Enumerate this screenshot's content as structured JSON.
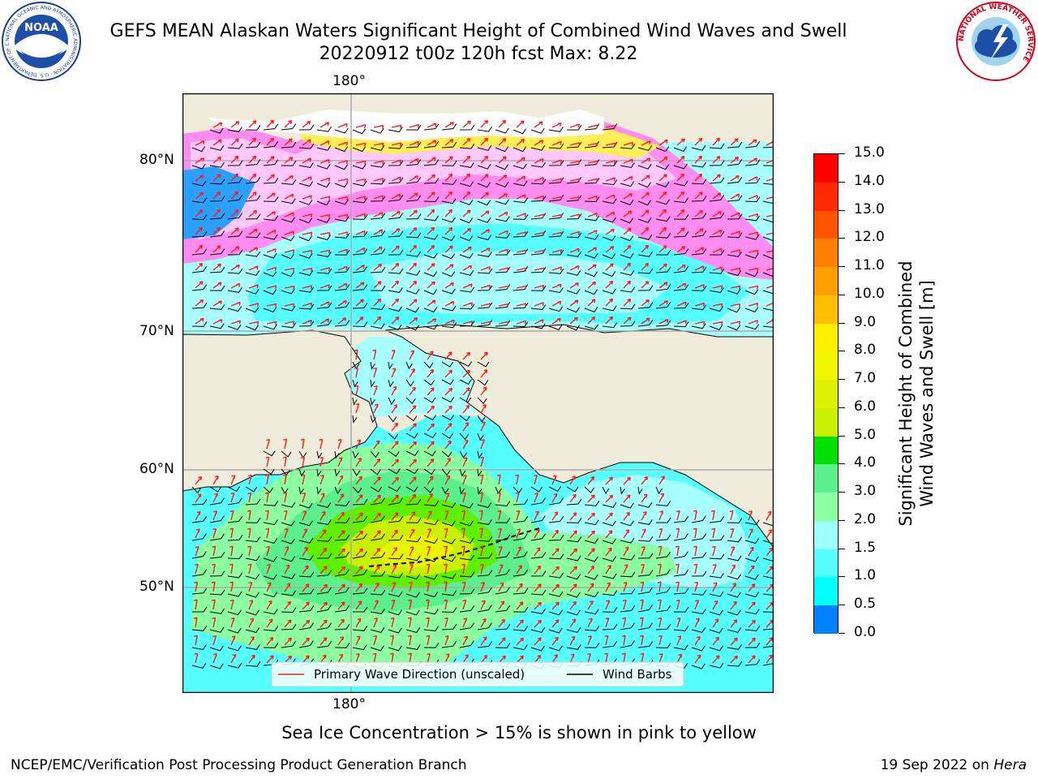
{
  "header": {
    "title_line1": "GEFS MEAN Alaskan Waters Significant Height of Combined Wind Waves and Swell",
    "title_line2": "20220912 t00z 120h fcst   Max: 8.22"
  },
  "logos": {
    "noaa_text": "NOAA",
    "noaa_ring_text": "NATIONAL OCEANIC AND ATMOSPHERIC ADMINISTRATION · U.S. DEPARTMENT OF COMMERCE",
    "nws_ring_text": "NATIONAL WEATHER SERVICE"
  },
  "map": {
    "lon_label_top": "180°",
    "lon_label_bottom": "180°",
    "lat_labels": [
      "80°N",
      "70°N",
      "60°N",
      "50°N"
    ],
    "legend": {
      "wave_direction": "Primary Wave Direction (unscaled)",
      "wind_barbs": "Wind Barbs"
    }
  },
  "colorbar": {
    "label_line1": "Significant Height of Combined",
    "label_line2": "Wind Waves and Swell [m]",
    "ticks": [
      "15.0",
      "14.0",
      "13.0",
      "12.0",
      "11.0",
      "10.0",
      "9.0",
      "8.0",
      "7.0",
      "6.0",
      "5.0",
      "4.0",
      "3.0",
      "2.0",
      "1.5",
      "1.0",
      "0.5",
      "0.0"
    ],
    "colors_top_to_bottom": [
      "#ff0000",
      "#ff2a00",
      "#ff5500",
      "#ff7f00",
      "#ff9f00",
      "#ffbf00",
      "#ffef00",
      "#f0f500",
      "#dcf000",
      "#c8f000",
      "#5ef000",
      "#00e000",
      "#5cf08c",
      "#8cffa0",
      "#a0ffff",
      "#55ffff",
      "#00ffff",
      "#0080ff",
      "#0000ff"
    ]
  },
  "subtitle": "Sea Ice Concentration > 15% is shown in pink to yellow",
  "footer": {
    "left": "NCEP/EMC/Verification Post Processing Product Generation Branch",
    "right_date": "19 Sep 2022 on ",
    "right_machine": "Hera"
  }
}
